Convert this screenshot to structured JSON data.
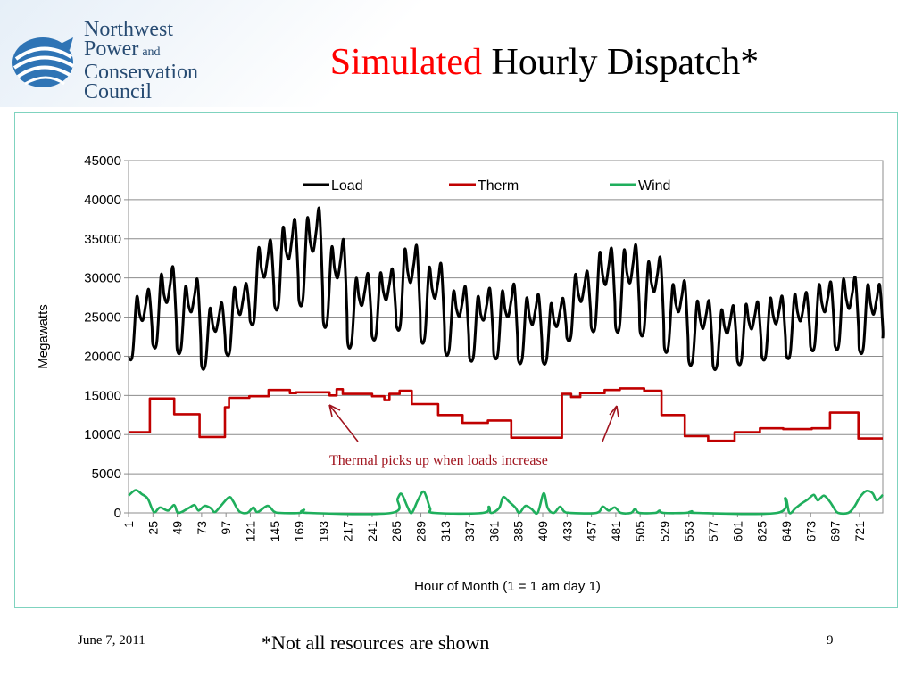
{
  "slide": {
    "logo_lines": [
      "Northwest",
      "Power",
      "Conservation",
      "Council"
    ],
    "logo_and": "and",
    "title_accent": "Simulated",
    "title_rest": "Hourly Dispatch*",
    "date": "June 7, 2011",
    "note": "*Not all resources are shown",
    "page_number": "9",
    "colors": {
      "accent": "#ff0000",
      "logo": "#274b72",
      "frame": "#7fd3bf"
    }
  },
  "chart_data": {
    "type": "line",
    "title": "",
    "xlabel": "Hour of Month (1 = 1 am day 1)",
    "ylabel": "Megawatts",
    "ylim": [
      0,
      45000
    ],
    "xlim": [
      1,
      744
    ],
    "yticks": [
      0,
      5000,
      10000,
      15000,
      20000,
      25000,
      30000,
      35000,
      40000,
      45000
    ],
    "xticks": [
      1,
      25,
      49,
      73,
      97,
      121,
      145,
      169,
      193,
      217,
      241,
      265,
      289,
      313,
      337,
      361,
      385,
      409,
      433,
      457,
      481,
      505,
      529,
      553,
      577,
      601,
      625,
      649,
      673,
      697,
      721
    ],
    "grid": "horizontal",
    "legend_position": "top",
    "annotation": "Thermal picks up when loads increase",
    "series": [
      {
        "name": "Load",
        "color": "#000000",
        "sampling": "daily min/max, hour 1 = 1 am day 1",
        "daily": [
          {
            "min": 19800,
            "peaks": [
              27500,
              28500
            ]
          },
          {
            "min": 21500,
            "peaks": [
              30300,
              31300
            ]
          },
          {
            "min": 20800,
            "peaks": [
              28800,
              29700
            ]
          },
          {
            "min": 18800,
            "peaks": [
              26000,
              26800
            ]
          },
          {
            "min": 20500,
            "peaks": [
              28600,
              29300
            ]
          },
          {
            "min": 24400,
            "peaks": [
              33700,
              34800
            ]
          },
          {
            "min": 26400,
            "peaks": [
              36300,
              37400
            ]
          },
          {
            "min": 27000,
            "peaks": [
              37500,
              38700
            ]
          },
          {
            "min": 24300,
            "peaks": [
              33800,
              34700
            ]
          },
          {
            "min": 21600,
            "peaks": [
              29800,
              30500
            ]
          },
          {
            "min": 22500,
            "peaks": [
              30500,
              31100
            ]
          },
          {
            "min": 23800,
            "peaks": [
              33500,
              34000
            ]
          },
          {
            "min": 22200,
            "peaks": [
              31200,
              31700
            ]
          },
          {
            "min": 20600,
            "peaks": [
              28200,
              28800
            ]
          },
          {
            "min": 19800,
            "peaks": [
              27500,
              28600
            ]
          },
          {
            "min": 20100,
            "peaks": [
              28200,
              29100
            ]
          },
          {
            "min": 19500,
            "peaks": [
              27300,
              27800
            ]
          },
          {
            "min": 19400,
            "peaks": [
              26600,
              27400
            ]
          },
          {
            "min": 22300,
            "peaks": [
              30300,
              30800
            ]
          },
          {
            "min": 23600,
            "peaks": [
              33100,
              33700
            ]
          },
          {
            "min": 23600,
            "peaks": [
              33400,
              34100
            ]
          },
          {
            "min": 23100,
            "peaks": [
              31900,
              32500
            ]
          },
          {
            "min": 21000,
            "peaks": [
              29000,
              29500
            ]
          },
          {
            "min": 19300,
            "peaks": [
              26900,
              27000
            ]
          },
          {
            "min": 18700,
            "peaks": [
              25800,
              26400
            ]
          },
          {
            "min": 19300,
            "peaks": [
              26500,
              26900
            ]
          },
          {
            "min": 19900,
            "peaks": [
              27300,
              27600
            ]
          },
          {
            "min": 20100,
            "peaks": [
              27800,
              28100
            ]
          },
          {
            "min": 21100,
            "peaks": [
              29000,
              29400
            ]
          },
          {
            "min": 21300,
            "peaks": [
              29700,
              30000
            ]
          },
          {
            "min": 20800,
            "peaks": [
              29000,
              29100
            ]
          }
        ]
      },
      {
        "name": "Therm",
        "color": "#c00000",
        "sampling": "step segments [start hour, end hour, MW]",
        "segments": [
          [
            1,
            22,
            10300
          ],
          [
            22,
            46,
            14600
          ],
          [
            46,
            71,
            12600
          ],
          [
            71,
            96,
            9700
          ],
          [
            96,
            100,
            13500
          ],
          [
            100,
            120,
            14700
          ],
          [
            120,
            139,
            14900
          ],
          [
            139,
            160,
            15700
          ],
          [
            160,
            166,
            15300
          ],
          [
            166,
            186,
            15400
          ],
          [
            186,
            199,
            15400
          ],
          [
            199,
            206,
            15000
          ],
          [
            206,
            212,
            15800
          ],
          [
            212,
            241,
            15200
          ],
          [
            241,
            253,
            14900
          ],
          [
            253,
            258,
            14400
          ],
          [
            258,
            268,
            15200
          ],
          [
            268,
            280,
            15600
          ],
          [
            280,
            306,
            13900
          ],
          [
            306,
            330,
            12500
          ],
          [
            330,
            355,
            11500
          ],
          [
            355,
            378,
            11800
          ],
          [
            378,
            401,
            9600
          ],
          [
            401,
            428,
            9600
          ],
          [
            428,
            437,
            15200
          ],
          [
            437,
            446,
            14800
          ],
          [
            446,
            470,
            15300
          ],
          [
            470,
            485,
            15700
          ],
          [
            485,
            509,
            15900
          ],
          [
            509,
            526,
            15600
          ],
          [
            526,
            549,
            12500
          ],
          [
            549,
            572,
            9800
          ],
          [
            572,
            598,
            9200
          ],
          [
            598,
            623,
            10300
          ],
          [
            623,
            646,
            10800
          ],
          [
            646,
            674,
            10700
          ],
          [
            674,
            692,
            10800
          ],
          [
            692,
            720,
            12800
          ],
          [
            720,
            744,
            9500
          ]
        ]
      },
      {
        "name": "Wind",
        "color": "#1fae5c",
        "sampling": "keyframes [hour, MW]",
        "points": [
          [
            1,
            2200
          ],
          [
            8,
            2900
          ],
          [
            14,
            2400
          ],
          [
            20,
            1800
          ],
          [
            26,
            100
          ],
          [
            32,
            700
          ],
          [
            40,
            300
          ],
          [
            46,
            1000
          ],
          [
            50,
            0
          ],
          [
            60,
            600
          ],
          [
            66,
            1000
          ],
          [
            70,
            300
          ],
          [
            76,
            900
          ],
          [
            82,
            600
          ],
          [
            86,
            100
          ],
          [
            92,
            900
          ],
          [
            100,
            2000
          ],
          [
            104,
            1500
          ],
          [
            110,
            200
          ],
          [
            118,
            0
          ],
          [
            124,
            700
          ],
          [
            128,
            100
          ],
          [
            138,
            900
          ],
          [
            144,
            200
          ],
          [
            150,
            0
          ],
          [
            170,
            0
          ],
          [
            174,
            400
          ],
          [
            178,
            0
          ],
          [
            260,
            0
          ],
          [
            266,
            1800
          ],
          [
            270,
            2400
          ],
          [
            276,
            700
          ],
          [
            280,
            0
          ],
          [
            286,
            1600
          ],
          [
            292,
            2700
          ],
          [
            298,
            600
          ],
          [
            302,
            0
          ],
          [
            350,
            0
          ],
          [
            356,
            800
          ],
          [
            358,
            0
          ],
          [
            366,
            600
          ],
          [
            370,
            2000
          ],
          [
            376,
            1400
          ],
          [
            382,
            700
          ],
          [
            386,
            0
          ],
          [
            392,
            900
          ],
          [
            398,
            500
          ],
          [
            404,
            0
          ],
          [
            410,
            2500
          ],
          [
            414,
            600
          ],
          [
            420,
            0
          ],
          [
            426,
            800
          ],
          [
            430,
            200
          ],
          [
            436,
            0
          ],
          [
            462,
            0
          ],
          [
            468,
            800
          ],
          [
            474,
            300
          ],
          [
            480,
            700
          ],
          [
            486,
            0
          ],
          [
            496,
            0
          ],
          [
            500,
            500
          ],
          [
            504,
            0
          ],
          [
            520,
            0
          ],
          [
            524,
            300
          ],
          [
            528,
            0
          ],
          [
            550,
            0
          ],
          [
            556,
            200
          ],
          [
            560,
            0
          ],
          [
            640,
            0
          ],
          [
            648,
            1900
          ],
          [
            652,
            0
          ],
          [
            658,
            600
          ],
          [
            664,
            1200
          ],
          [
            670,
            1700
          ],
          [
            676,
            2300
          ],
          [
            680,
            1600
          ],
          [
            686,
            2200
          ],
          [
            692,
            1400
          ],
          [
            696,
            600
          ],
          [
            700,
            0
          ],
          [
            710,
            0
          ],
          [
            716,
            800
          ],
          [
            722,
            2100
          ],
          [
            728,
            2800
          ],
          [
            734,
            2500
          ],
          [
            738,
            1600
          ],
          [
            744,
            2300
          ]
        ]
      }
    ]
  }
}
